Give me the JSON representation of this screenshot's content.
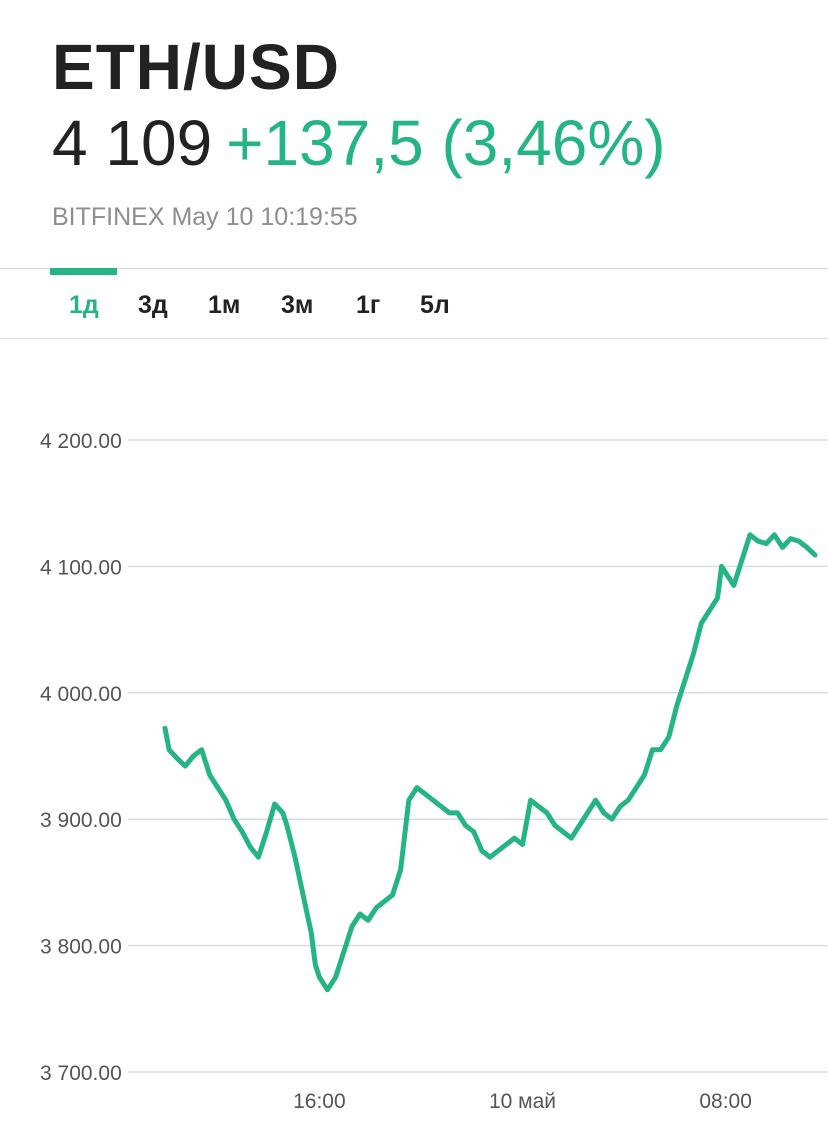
{
  "quote": {
    "symbol": "ETH/USD",
    "price": "4 109",
    "change": "+137,5 (3,46%)",
    "source_time": "BITFINEX May 10 10:19:55"
  },
  "tabs": [
    {
      "label": "1д",
      "active": true
    },
    {
      "label": "3д",
      "active": false
    },
    {
      "label": "1м",
      "active": false
    },
    {
      "label": "3м",
      "active": false
    },
    {
      "label": "1г",
      "active": false
    },
    {
      "label": "5л",
      "active": false
    }
  ],
  "colors": {
    "accent": "#25b583",
    "text": "#222222",
    "muted": "#8e8e8e",
    "grid": "#dcdcdc"
  },
  "chart_data": {
    "type": "line",
    "title": "",
    "xlabel": "",
    "ylabel": "",
    "ylim": [
      3700,
      4200
    ],
    "y_ticks": [
      4200,
      4100,
      4000,
      3900,
      3800,
      3700
    ],
    "y_tick_labels": [
      "4 200.00",
      "4 100.00",
      "4 000.00",
      "3 900.00",
      "3 800.00",
      "3 700.00"
    ],
    "x_ticks": [
      {
        "label": "16:00",
        "x": 5.0
      },
      {
        "label": "10 май",
        "x": 10.0
      },
      {
        "label": "08:00",
        "x": 15.0
      }
    ],
    "xlim": [
      1.2,
      17.2
    ],
    "grid": true,
    "legend": "none",
    "series": [
      {
        "x": [
          1.2,
          1.3,
          1.5,
          1.7,
          1.9,
          2.1,
          2.3,
          2.5,
          2.7,
          2.9,
          3.1,
          3.3,
          3.5,
          3.7,
          3.9,
          4.1,
          4.2,
          4.4,
          4.6,
          4.8,
          4.9,
          5.0,
          5.2,
          5.4,
          5.6,
          5.8,
          6.0,
          6.2,
          6.4,
          6.6,
          6.8,
          7.0,
          7.2,
          7.4,
          7.6,
          7.8,
          8.0,
          8.2,
          8.4,
          8.6,
          8.8,
          9.0,
          9.2,
          9.4,
          9.6,
          9.8,
          10.0,
          10.2,
          10.4,
          10.6,
          10.8,
          11.0,
          11.2,
          11.4,
          11.6,
          11.8,
          12.0,
          12.2,
          12.4,
          12.6,
          12.8,
          13.0,
          13.2,
          13.4,
          13.6,
          13.8,
          14.0,
          14.2,
          14.4,
          14.6,
          14.8,
          14.9,
          15.0,
          15.2,
          15.4,
          15.6,
          15.8,
          16.0,
          16.2,
          16.4,
          16.6,
          16.8,
          17.0,
          17.2
        ],
        "y": [
          3972,
          3955,
          3948,
          3942,
          3950,
          3955,
          3935,
          3925,
          3915,
          3900,
          3890,
          3878,
          3870,
          3890,
          3912,
          3905,
          3895,
          3870,
          3840,
          3810,
          3785,
          3775,
          3765,
          3775,
          3795,
          3815,
          3825,
          3820,
          3830,
          3835,
          3840,
          3860,
          3915,
          3925,
          3920,
          3915,
          3910,
          3905,
          3905,
          3895,
          3890,
          3875,
          3870,
          3875,
          3880,
          3885,
          3880,
          3915,
          3910,
          3905,
          3895,
          3890,
          3885,
          3895,
          3905,
          3915,
          3905,
          3900,
          3910,
          3915,
          3925,
          3935,
          3955,
          3955,
          3965,
          3990,
          4010,
          4030,
          4055,
          4065,
          4075,
          4100,
          4095,
          4085,
          4105,
          4125,
          4120,
          4118,
          4125,
          4115,
          4122,
          4120,
          4115,
          4109
        ]
      }
    ]
  }
}
